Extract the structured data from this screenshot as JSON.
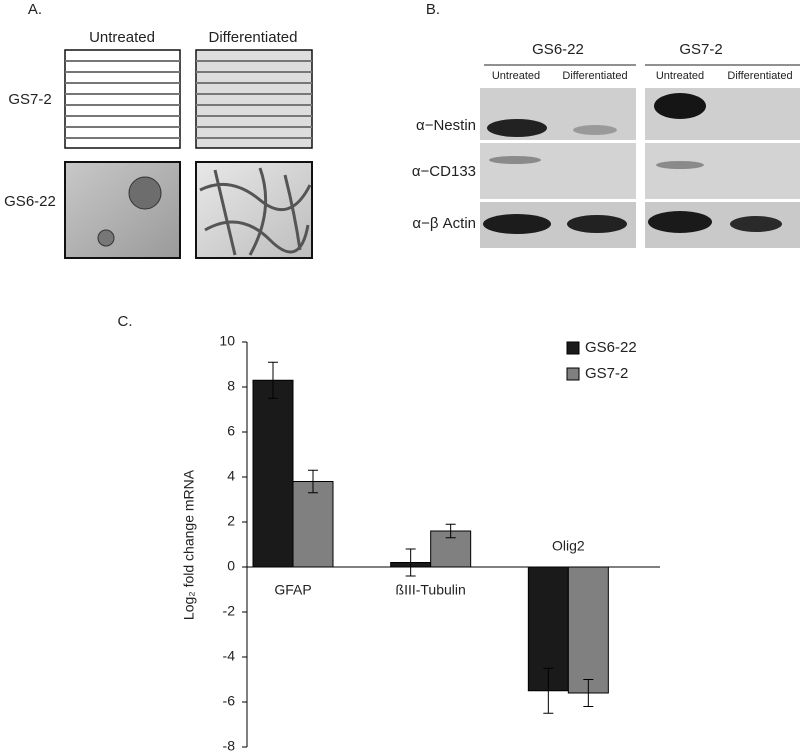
{
  "panel_a": {
    "label": "A.",
    "columns": [
      "Untreated",
      "Differentiated"
    ],
    "rows": [
      "GS7-2",
      "GS6-22"
    ]
  },
  "panel_b": {
    "label": "B.",
    "groups": [
      {
        "name": "GS6-22",
        "columns": [
          "Untreated",
          "Differentiated"
        ]
      },
      {
        "name": "GS7-2",
        "columns": [
          "Untreated",
          "Differentiated"
        ]
      }
    ],
    "rows": [
      "α−Nestin",
      "α−CD133",
      "α−β Actin"
    ]
  },
  "chart_data": {
    "type": "bar",
    "label": "C.",
    "y_label": "Log₂ fold change mRNA",
    "categories": [
      "GFAP",
      "ßIII-Tubulin",
      "Olig2"
    ],
    "series": [
      {
        "name": "GS6-22",
        "color": "#1a1a1a",
        "values": [
          8.3,
          0.2,
          -5.5
        ],
        "errors": [
          0.8,
          0.6,
          1.0
        ]
      },
      {
        "name": "GS7-2",
        "color": "#808080",
        "values": [
          3.8,
          1.6,
          -5.6
        ],
        "errors": [
          0.5,
          0.3,
          0.6
        ]
      }
    ],
    "ylim": [
      -8,
      10
    ],
    "yticks": [
      -8,
      -6,
      -4,
      -2,
      0,
      2,
      4,
      6,
      8,
      10
    ],
    "legend": "upper-right"
  }
}
